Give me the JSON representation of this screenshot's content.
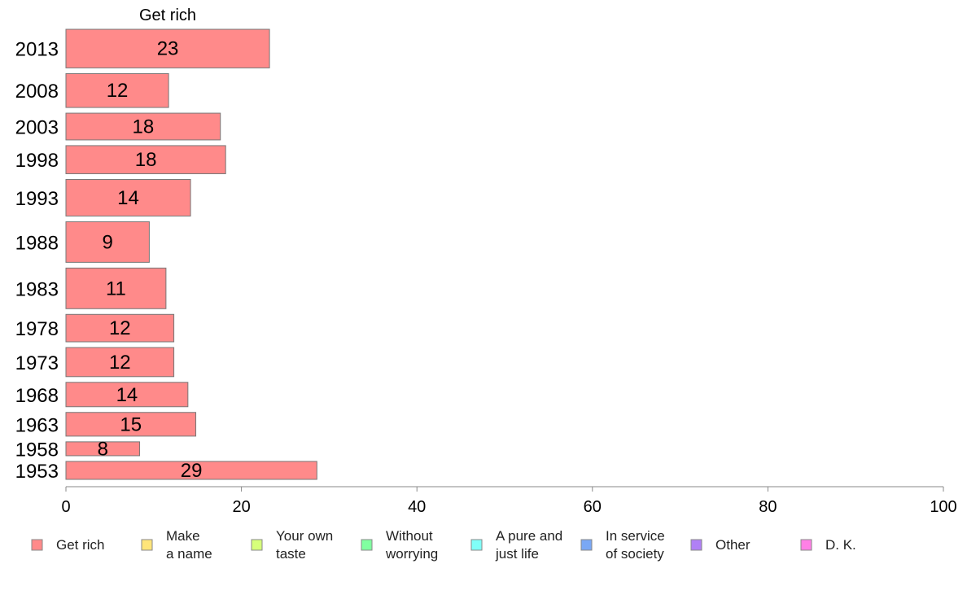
{
  "chart_data": {
    "type": "bar",
    "orientation": "horizontal",
    "title": "Get rich",
    "categories": [
      "2013",
      "2008",
      "2003",
      "1998",
      "1993",
      "1988",
      "1983",
      "1978",
      "1973",
      "1968",
      "1963",
      "1958",
      "1953"
    ],
    "series": [
      {
        "name": "Get rich",
        "color": "#ff8a8a",
        "values": [
          23,
          12,
          18,
          18,
          14,
          9,
          11,
          12,
          12,
          14,
          15,
          8,
          29
        ],
        "exact_values": [
          23.2,
          11.7,
          17.6,
          18.2,
          14.2,
          9.5,
          11.4,
          12.3,
          12.3,
          13.9,
          14.8,
          8.4,
          28.6
        ],
        "labels": [
          "23",
          "12",
          "18",
          "18",
          "14",
          "9",
          "11",
          "12",
          "12",
          "14",
          "15",
          "8",
          "29"
        ]
      }
    ],
    "relative_bar_thickness": [
      1.14,
      1.0,
      0.79,
      0.83,
      1.08,
      1.2,
      1.2,
      0.81,
      0.86,
      0.72,
      0.7,
      0.41,
      0.53
    ],
    "xlim": [
      0,
      100
    ],
    "xticks": [
      0,
      20,
      40,
      60,
      80,
      100
    ],
    "xlabel": "",
    "ylabel": "",
    "grid": false,
    "legend": {
      "position": "bottom",
      "entries": [
        {
          "lines": [
            "Get rich"
          ],
          "color": "#ff8a8a"
        },
        {
          "lines": [
            "Make",
            "a name"
          ],
          "color": "#ffe57a"
        },
        {
          "lines": [
            "Your own",
            "taste"
          ],
          "color": "#d6ff7a"
        },
        {
          "lines": [
            "Without",
            "worrying"
          ],
          "color": "#80ffa0"
        },
        {
          "lines": [
            "A pure and",
            "just life"
          ],
          "color": "#80fff8"
        },
        {
          "lines": [
            "In service",
            "of society"
          ],
          "color": "#7aa8f5"
        },
        {
          "lines": [
            "Other"
          ],
          "color": "#b080f5"
        },
        {
          "lines": [
            "D. K."
          ],
          "color": "#ff80e6"
        }
      ]
    }
  }
}
